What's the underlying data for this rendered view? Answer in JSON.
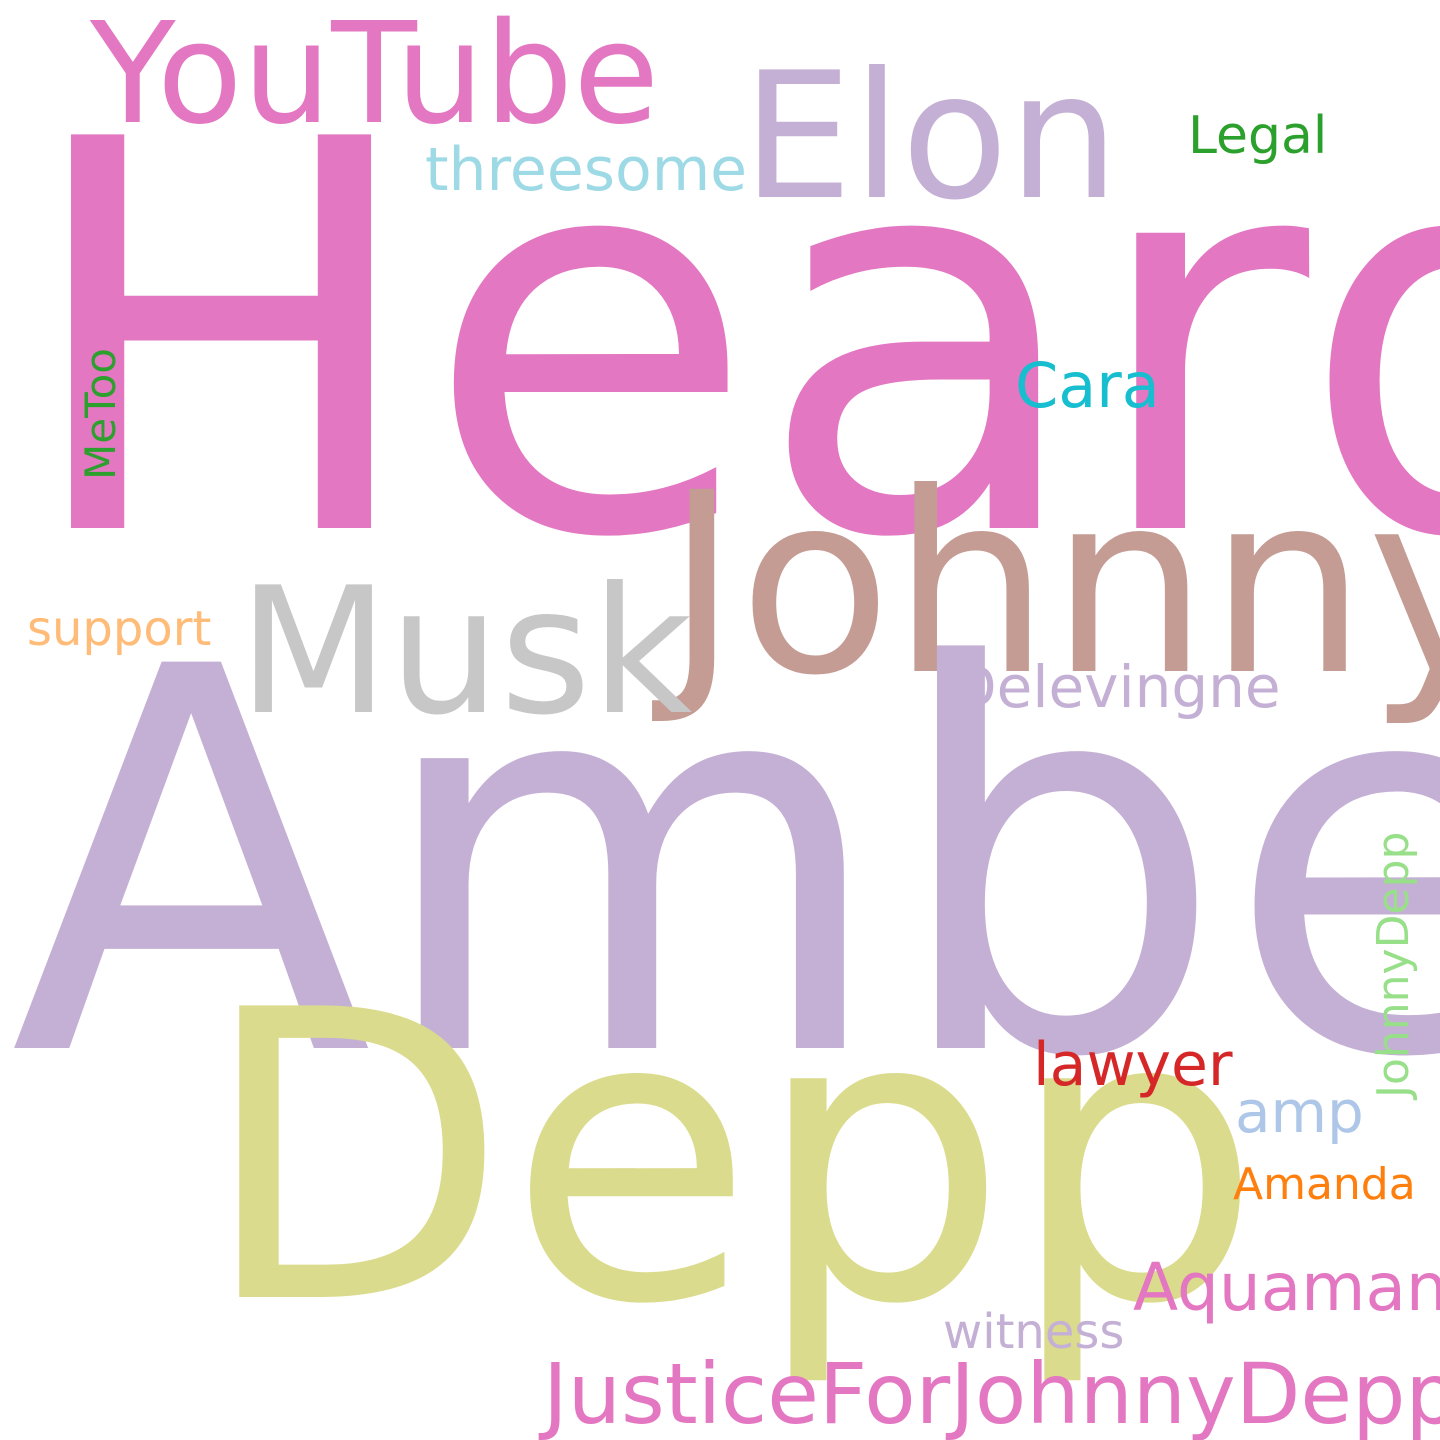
{
  "word_cloud": {
    "words": [
      {
        "id": "heard",
        "text": "Heard",
        "color": "#e377c2",
        "orientation": "horizontal"
      },
      {
        "id": "amber",
        "text": "Amber",
        "color": "#c5b0d5",
        "orientation": "horizontal"
      },
      {
        "id": "depp",
        "text": "Depp",
        "color": "#dbdb8d",
        "orientation": "horizontal"
      },
      {
        "id": "johnny",
        "text": "Johnny",
        "color": "#c49c94",
        "orientation": "horizontal"
      },
      {
        "id": "musk",
        "text": "Musk",
        "color": "#c7c7c7",
        "orientation": "horizontal"
      },
      {
        "id": "elon",
        "text": "Elon",
        "color": "#c5b0d5",
        "orientation": "horizontal"
      },
      {
        "id": "youtube",
        "text": "YouTube",
        "color": "#e377c2",
        "orientation": "horizontal"
      },
      {
        "id": "threesome",
        "text": "threesome",
        "color": "#9edae5",
        "orientation": "horizontal"
      },
      {
        "id": "legal",
        "text": "Legal",
        "color": "#2ca02c",
        "orientation": "horizontal"
      },
      {
        "id": "cara",
        "text": "Cara",
        "color": "#17becf",
        "orientation": "horizontal"
      },
      {
        "id": "delevingne",
        "text": "Delevingne",
        "color": "#c5b0d5",
        "orientation": "horizontal"
      },
      {
        "id": "support",
        "text": "support",
        "color": "#ffbb78",
        "orientation": "horizontal"
      },
      {
        "id": "lawyer",
        "text": "lawyer",
        "color": "#d62728",
        "orientation": "horizontal"
      },
      {
        "id": "amp",
        "text": "amp",
        "color": "#aec7e8",
        "orientation": "horizontal"
      },
      {
        "id": "amanda",
        "text": "Amanda",
        "color": "#ff7f0e",
        "orientation": "horizontal"
      },
      {
        "id": "aquaman",
        "text": "Aquaman",
        "color": "#e377c2",
        "orientation": "horizontal"
      },
      {
        "id": "witness",
        "text": "witness",
        "color": "#c5b0d5",
        "orientation": "horizontal"
      },
      {
        "id": "justice",
        "text": "JusticeForJohnnyDepp",
        "color": "#e377c2",
        "orientation": "horizontal"
      },
      {
        "id": "metoo",
        "text": "MeToo",
        "color": "#2ca02c",
        "orientation": "vertical"
      },
      {
        "id": "johnnydepp",
        "text": "JohnnyDepp",
        "color": "#98df8a",
        "orientation": "vertical"
      }
    ]
  }
}
